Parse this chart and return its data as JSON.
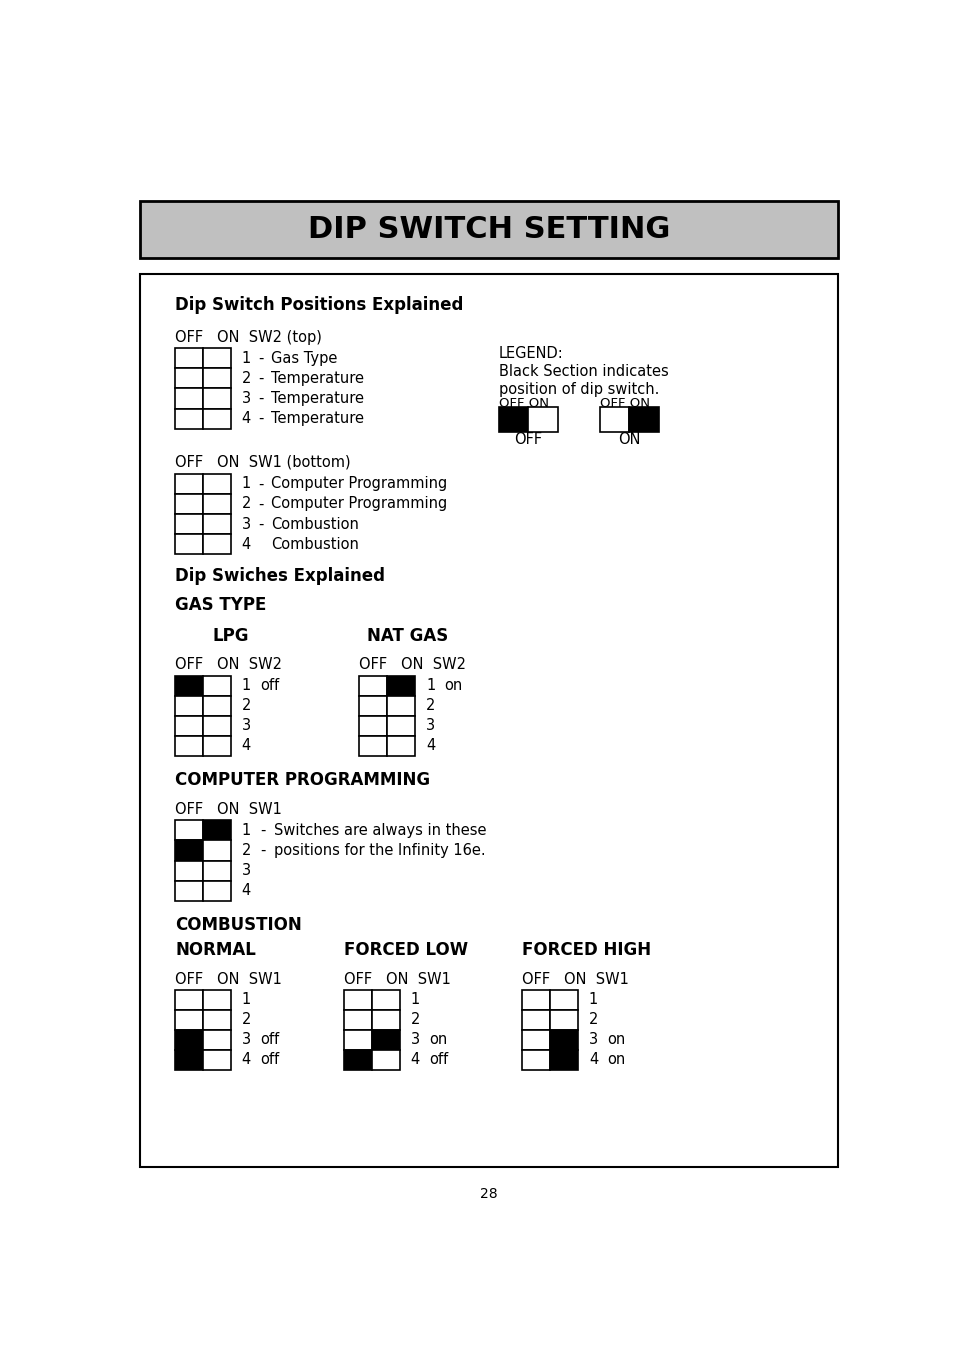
{
  "title": "DIP SWITCH SETTING",
  "title_bg": "#c0c0c0",
  "page_number": "28",
  "pos_explained_title": "Dip Switch Positions Explained",
  "sw2_header": "OFF   ON  SW2 (top)",
  "sw2_rows": [
    [
      "1",
      "-",
      "Gas Type"
    ],
    [
      "2",
      "-",
      "Temperature"
    ],
    [
      "3",
      "-",
      "Temperature"
    ],
    [
      "4",
      "-",
      "Temperature"
    ]
  ],
  "legend_title": "LEGEND:",
  "legend_line1": "Black Section indicates",
  "legend_line2": "position of dip switch.",
  "legend_off_header": "OFF ON",
  "legend_on_header": "OFF ON",
  "legend_off_text": "OFF",
  "legend_on_text": "ON",
  "sw1_header": "OFF   ON  SW1 (bottom)",
  "sw1_rows": [
    [
      "1",
      "-",
      "Computer Programming"
    ],
    [
      "2",
      "-",
      "Computer Programming"
    ],
    [
      "3",
      "-",
      "Combustion"
    ],
    [
      "4",
      "",
      "Combustion"
    ]
  ],
  "dip_switches_title": "Dip Swiches Explained",
  "gas_type_title": "GAS TYPE",
  "lpg_title": "LPG",
  "nat_gas_title": "NAT GAS",
  "lpg_sw2_header": "OFF   ON  SW2",
  "nat_gas_sw2_header": "OFF   ON  SW2",
  "comp_prog_title": "COMPUTER PROGRAMMING",
  "comp_sw1_header": "OFF   ON  SW1",
  "comp_note1": "Switches are always in these",
  "comp_note2": "positions for the Infinity 16e.",
  "combustion_title": "COMBUSTION",
  "normal_title": "NORMAL",
  "forced_low_title": "FORCED LOW",
  "forced_high_title": "FORCED HIGH",
  "normal_sw1_header": "OFF   ON  SW1",
  "fl_sw1_header": "OFF   ON  SW1",
  "fh_sw1_header": "OFF   ON  SW1"
}
